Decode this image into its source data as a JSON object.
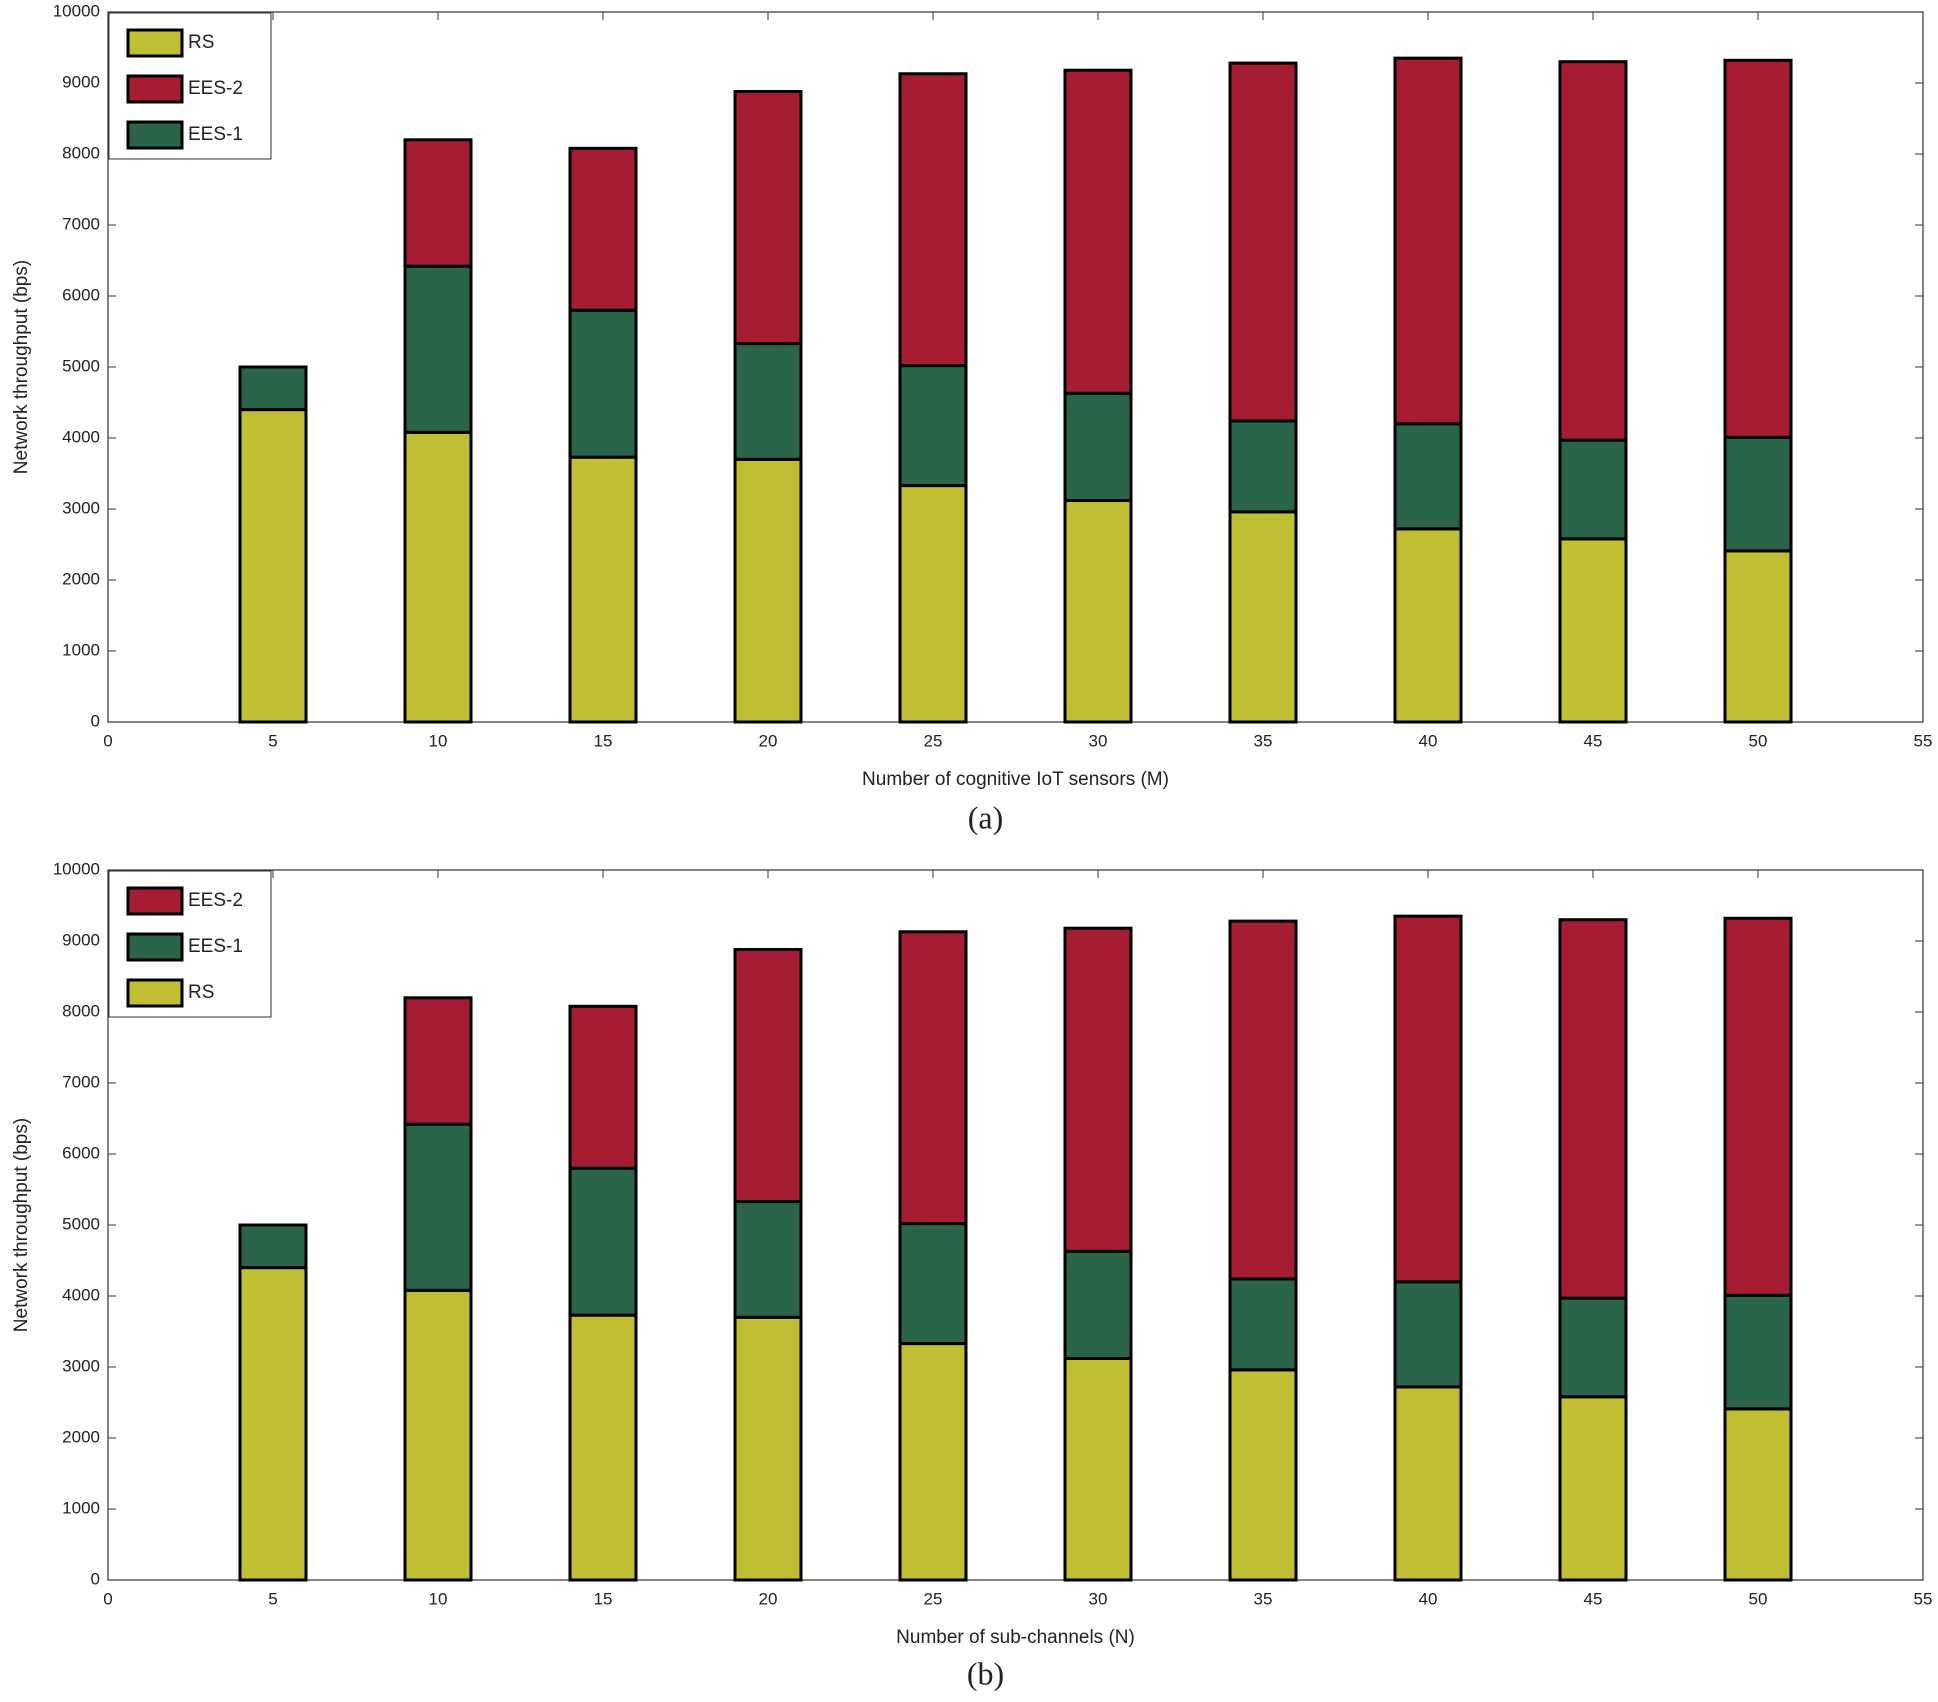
{
  "chart_data": [
    {
      "type": "bar",
      "stacked": true,
      "xlabel": "Number of cognitive IoT sensors (M)",
      "ylabel": "Network throughput (bps)",
      "caption": "(a)",
      "x": [
        5,
        10,
        15,
        20,
        25,
        30,
        35,
        40,
        45,
        50
      ],
      "xlim": [
        0,
        55
      ],
      "xticks": [
        0,
        5,
        10,
        15,
        20,
        25,
        30,
        35,
        40,
        45,
        50,
        55
      ],
      "ylim": [
        0,
        10000
      ],
      "yticks": [
        0,
        1000,
        2000,
        3000,
        4000,
        5000,
        6000,
        7000,
        8000,
        9000,
        10000
      ],
      "legend": "upper left",
      "legend_order": [
        0,
        2,
        1
      ],
      "series": [
        {
          "name": "RS",
          "color": "#c0bf34",
          "values": [
            4400,
            4080,
            3730,
            3700,
            3330,
            3120,
            2960,
            2720,
            2580,
            2410
          ]
        },
        {
          "name": "EES-1",
          "color": "#2a6549",
          "values": [
            600,
            2340,
            2070,
            1630,
            1690,
            1510,
            1280,
            1480,
            1390,
            1600
          ]
        },
        {
          "name": "EES-2",
          "color": "#a51c33",
          "values": [
            0,
            1780,
            2280,
            3550,
            4110,
            4550,
            5040,
            5150,
            5330,
            5310
          ]
        }
      ]
    },
    {
      "type": "bar",
      "stacked": true,
      "xlabel": "Number of sub-channels (N)",
      "ylabel": "Network throughput (bps)",
      "caption": "(b)",
      "x": [
        5,
        10,
        15,
        20,
        25,
        30,
        35,
        40,
        45,
        50
      ],
      "xlim": [
        0,
        55
      ],
      "xticks": [
        0,
        5,
        10,
        15,
        20,
        25,
        30,
        35,
        40,
        45,
        50,
        55
      ],
      "ylim": [
        0,
        10000
      ],
      "yticks": [
        0,
        1000,
        2000,
        3000,
        4000,
        5000,
        6000,
        7000,
        8000,
        9000,
        10000
      ],
      "legend": "upper left",
      "legend_order": [
        2,
        1,
        0
      ],
      "series": [
        {
          "name": "RS",
          "color": "#c0bf34",
          "values": [
            4400,
            4080,
            3730,
            3700,
            3330,
            3120,
            2960,
            2720,
            2580,
            2410
          ]
        },
        {
          "name": "EES-1",
          "color": "#2a6549",
          "values": [
            600,
            2340,
            2070,
            1630,
            1690,
            1510,
            1280,
            1480,
            1390,
            1600
          ]
        },
        {
          "name": "EES-2",
          "color": "#a51c33",
          "values": [
            0,
            1780,
            2280,
            3550,
            4110,
            4550,
            5040,
            5150,
            5330,
            5310
          ]
        }
      ]
    }
  ]
}
